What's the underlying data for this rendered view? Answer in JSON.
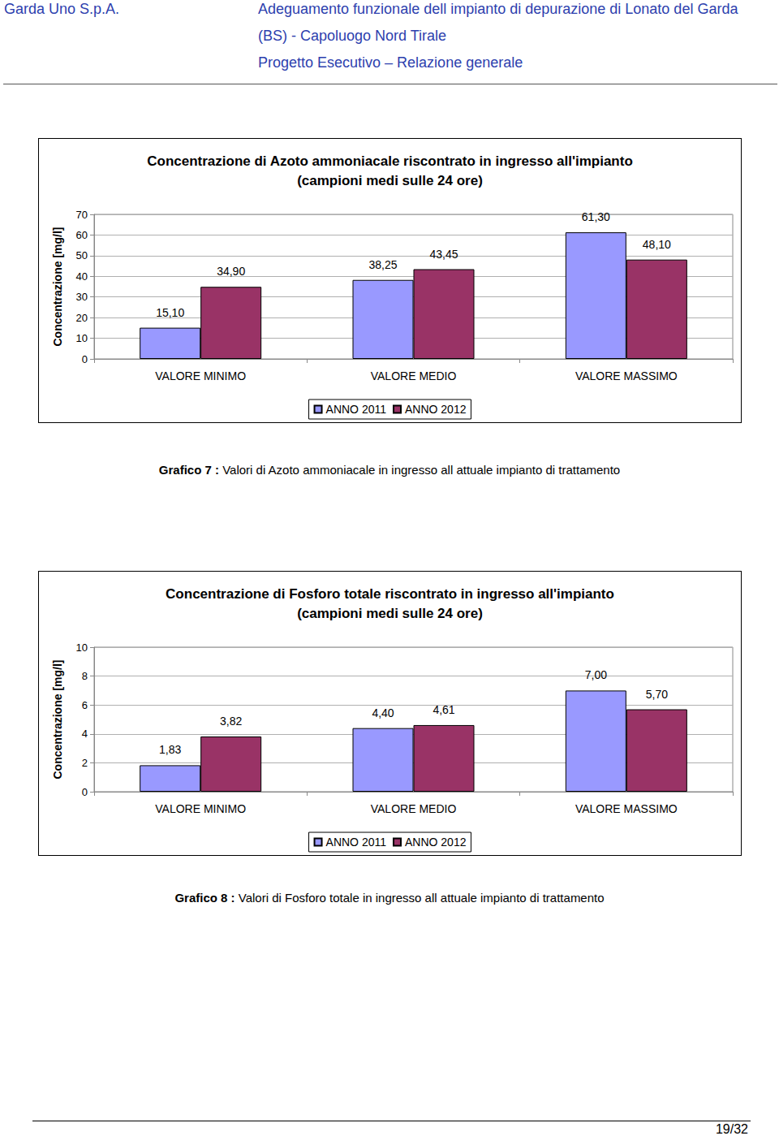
{
  "header": {
    "company": "Garda Uno S.p.A.",
    "lines": [
      "Adeguamento funzionale dell impianto di depurazione di Lonato del Garda",
      "(BS) - Capoluogo Nord Tirale",
      "Progetto Esecutivo – Relazione generale"
    ]
  },
  "chart_data": [
    {
      "type": "bar",
      "title": "Concentrazione di Azoto ammoniacale riscontrato in ingresso all'impianto\n(campioni medi sulle 24 ore)",
      "y_label": "Concentrazione [mg/l]",
      "categories": [
        "VALORE MINIMO",
        "VALORE MEDIO",
        "VALORE MASSIMO"
      ],
      "series": [
        {
          "name": "ANNO 2011",
          "color": "#9999ff",
          "values": [
            15.1,
            38.25,
            61.3
          ],
          "value_labels": [
            "15,10",
            "38,25",
            "61,30"
          ]
        },
        {
          "name": "ANNO 2012",
          "color": "#993366",
          "values": [
            34.9,
            43.45,
            48.1
          ],
          "value_labels": [
            "34,90",
            "43,45",
            "48,10"
          ]
        }
      ],
      "ylim": [
        0,
        70
      ],
      "yticks": [
        0,
        10,
        20,
        30,
        40,
        50,
        60,
        70
      ],
      "grid": true,
      "legend": "bottom",
      "data_labels": true
    },
    {
      "type": "bar",
      "title": "Concentrazione di Fosforo totale riscontrato in ingresso all'impianto\n(campioni medi sulle 24 ore)",
      "y_label": "Concentrazione [mg/l]",
      "categories": [
        "VALORE MINIMO",
        "VALORE MEDIO",
        "VALORE MASSIMO"
      ],
      "series": [
        {
          "name": "ANNO 2011",
          "color": "#9999ff",
          "values": [
            1.83,
            4.4,
            7.0
          ],
          "value_labels": [
            "1,83",
            "4,40",
            "7,00"
          ]
        },
        {
          "name": "ANNO 2012",
          "color": "#993366",
          "values": [
            3.82,
            4.61,
            5.7
          ],
          "value_labels": [
            "3,82",
            "4,61",
            "5,70"
          ]
        }
      ],
      "ylim": [
        0,
        10
      ],
      "yticks": [
        0,
        2,
        4,
        6,
        8,
        10
      ],
      "grid": true,
      "legend": "bottom",
      "data_labels": true
    }
  ],
  "captions": [
    {
      "label": "Grafico 7 :",
      "text": "Valori di Azoto ammoniacale in ingresso all attuale impianto di trattamento"
    },
    {
      "label": "Grafico 8 :",
      "text": "Valori di Fosforo totale in ingresso all attuale impianto di trattamento"
    }
  ],
  "page": "19/32"
}
